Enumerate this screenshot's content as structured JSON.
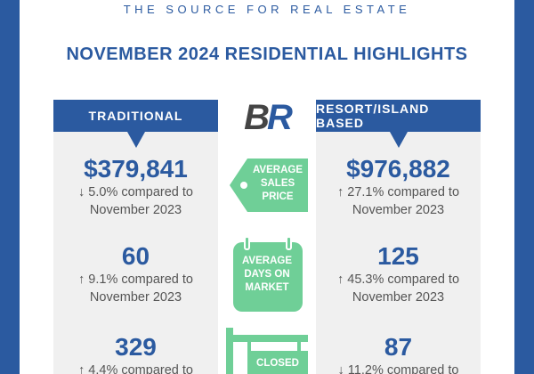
{
  "header": {
    "tagline": "THE SOURCE FOR REAL ESTATE",
    "title": "NOVEMBER 2024 RESIDENTIAL HIGHLIGHTS"
  },
  "logo": [
    "B",
    "R"
  ],
  "metrics": [
    "AVERAGE SALES PRICE",
    "AVERAGE DAYS ON MARKET",
    "CLOSED"
  ],
  "columns": [
    {
      "heading": "TRADITIONAL",
      "stats": [
        {
          "value": "$379,841",
          "change": "↓ 5.0% compared to",
          "period": "November 2023"
        },
        {
          "value": "60",
          "change": "↑ 9.1% compared to",
          "period": "November 2023"
        },
        {
          "value": "329",
          "change": "↑ 4.4% compared to"
        }
      ]
    },
    {
      "heading": "RESORT/ISLAND BASED",
      "stats": [
        {
          "value": "$976,882",
          "change": "↑ 27.1% compared to",
          "period": "November 2023"
        },
        {
          "value": "125",
          "change": "↑ 45.3% compared to",
          "period": "November 2023"
        },
        {
          "value": "87",
          "change": "↓ 11.2% compared to"
        }
      ]
    }
  ]
}
